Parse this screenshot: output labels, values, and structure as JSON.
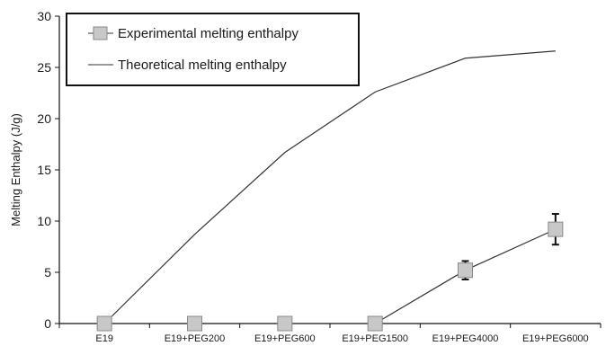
{
  "chart_data": {
    "type": "line",
    "categories": [
      "E19",
      "E19+PEG200",
      "E19+PEG600",
      "E19+PEG1500",
      "E19+PEG4000",
      "E19+PEG6000"
    ],
    "ylabel": "Melting Enthalpy (J/g)",
    "xlabel": "",
    "ylim": [
      0,
      30
    ],
    "yticks": [
      0,
      5,
      10,
      15,
      20,
      25,
      30
    ],
    "grid": false,
    "legend_position": "top-left",
    "series": [
      {
        "name": "Experimental melting enthalpy",
        "marker": "square",
        "values": [
          0,
          0,
          0,
          0,
          5.2,
          9.2
        ],
        "error": [
          0,
          0,
          0,
          0,
          0.9,
          1.5
        ],
        "line_drawn_from_index": 3
      },
      {
        "name": "Theoretical melting enthalpy",
        "marker": "none",
        "values": [
          0,
          8.7,
          16.7,
          22.6,
          25.9,
          26.6
        ]
      }
    ]
  },
  "colors": {
    "line": "#333333",
    "marker_fill": "#c8c8c8",
    "marker_stroke": "#8a8a8a"
  }
}
